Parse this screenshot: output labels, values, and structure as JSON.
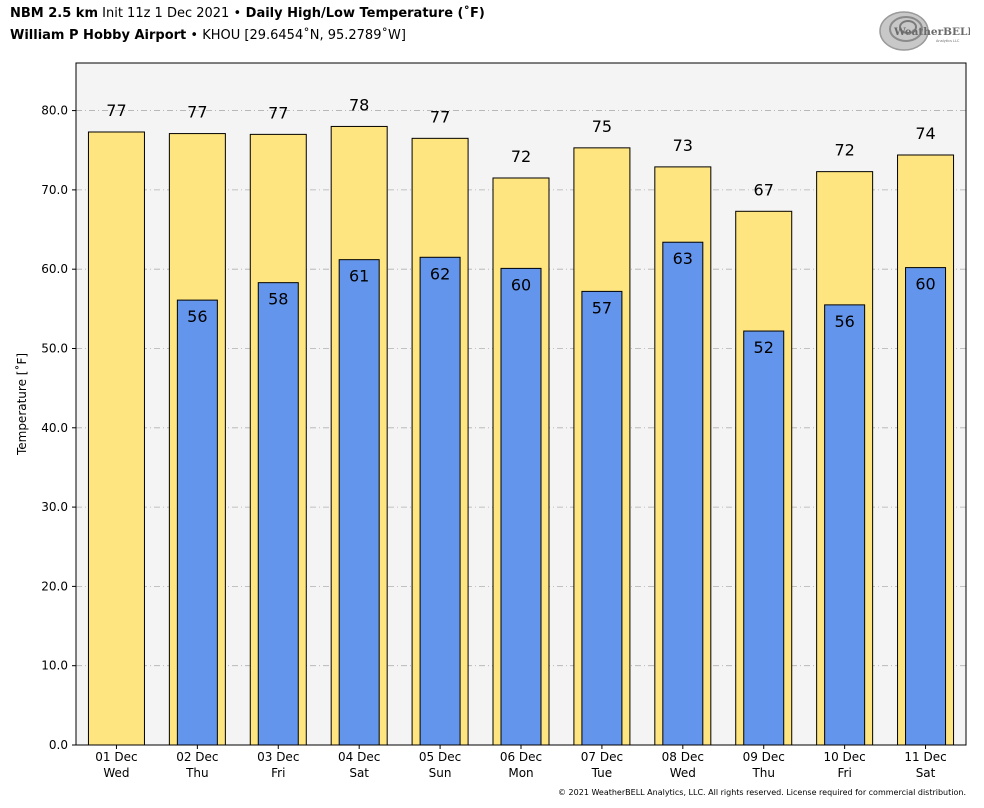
{
  "header": {
    "line1_model": "NBM 2.5 km",
    "line1_init": " Init 11z 1 Dec 2021 ",
    "line1_sep": "•",
    "line1_product": " Daily High/Low Temperature (˚F)",
    "line2_station": "William P Hobby Airport",
    "line2_sep": " • ",
    "line2_coords": "KHOU [29.6454˚N, 95.2789˚W]"
  },
  "logo": {
    "text_main": "WeatherBELL",
    "text_sub": "Analytics LLC",
    "icon": "weatherbell-swirl-logo"
  },
  "footer": {
    "copyright": "© 2021 WeatherBELL Analytics, LLC. All rights reserved. License required for commercial distribution."
  },
  "colors": {
    "high": "#FFE57F",
    "low": "#6495ED",
    "plot_bg": "#F4F4F4",
    "grid": "#B0B0B0"
  },
  "chart_data": {
    "type": "bar",
    "ylabel": "Temperature [˚F]",
    "ylim": [
      0,
      86
    ],
    "yticks": [
      "0.0",
      "10.0",
      "20.0",
      "30.0",
      "40.0",
      "50.0",
      "60.0",
      "70.0",
      "80.0"
    ],
    "grid": true,
    "categories": [
      [
        "01 Dec",
        "Wed"
      ],
      [
        "02 Dec",
        "Thu"
      ],
      [
        "03 Dec",
        "Fri"
      ],
      [
        "04 Dec",
        "Sat"
      ],
      [
        "05 Dec",
        "Sun"
      ],
      [
        "06 Dec",
        "Mon"
      ],
      [
        "07 Dec",
        "Tue"
      ],
      [
        "08 Dec",
        "Wed"
      ],
      [
        "09 Dec",
        "Thu"
      ],
      [
        "10 Dec",
        "Fri"
      ],
      [
        "11 Dec",
        "Sat"
      ]
    ],
    "series": [
      {
        "values": [
          77.3,
          77.1,
          77.0,
          78.0,
          76.5,
          71.5,
          75.3,
          72.9,
          67.3,
          72.3,
          74.4
        ],
        "labels": [
          "77",
          "77",
          "77",
          "78",
          "77",
          "72",
          "75",
          "73",
          "67",
          "72",
          "74"
        ]
      },
      {
        "values": [
          null,
          56.1,
          58.3,
          61.2,
          61.5,
          60.1,
          57.2,
          63.4,
          52.2,
          55.5,
          60.2
        ],
        "labels": [
          null,
          "56",
          "58",
          "61",
          "62",
          "60",
          "57",
          "63",
          "52",
          "56",
          "60"
        ]
      }
    ]
  }
}
